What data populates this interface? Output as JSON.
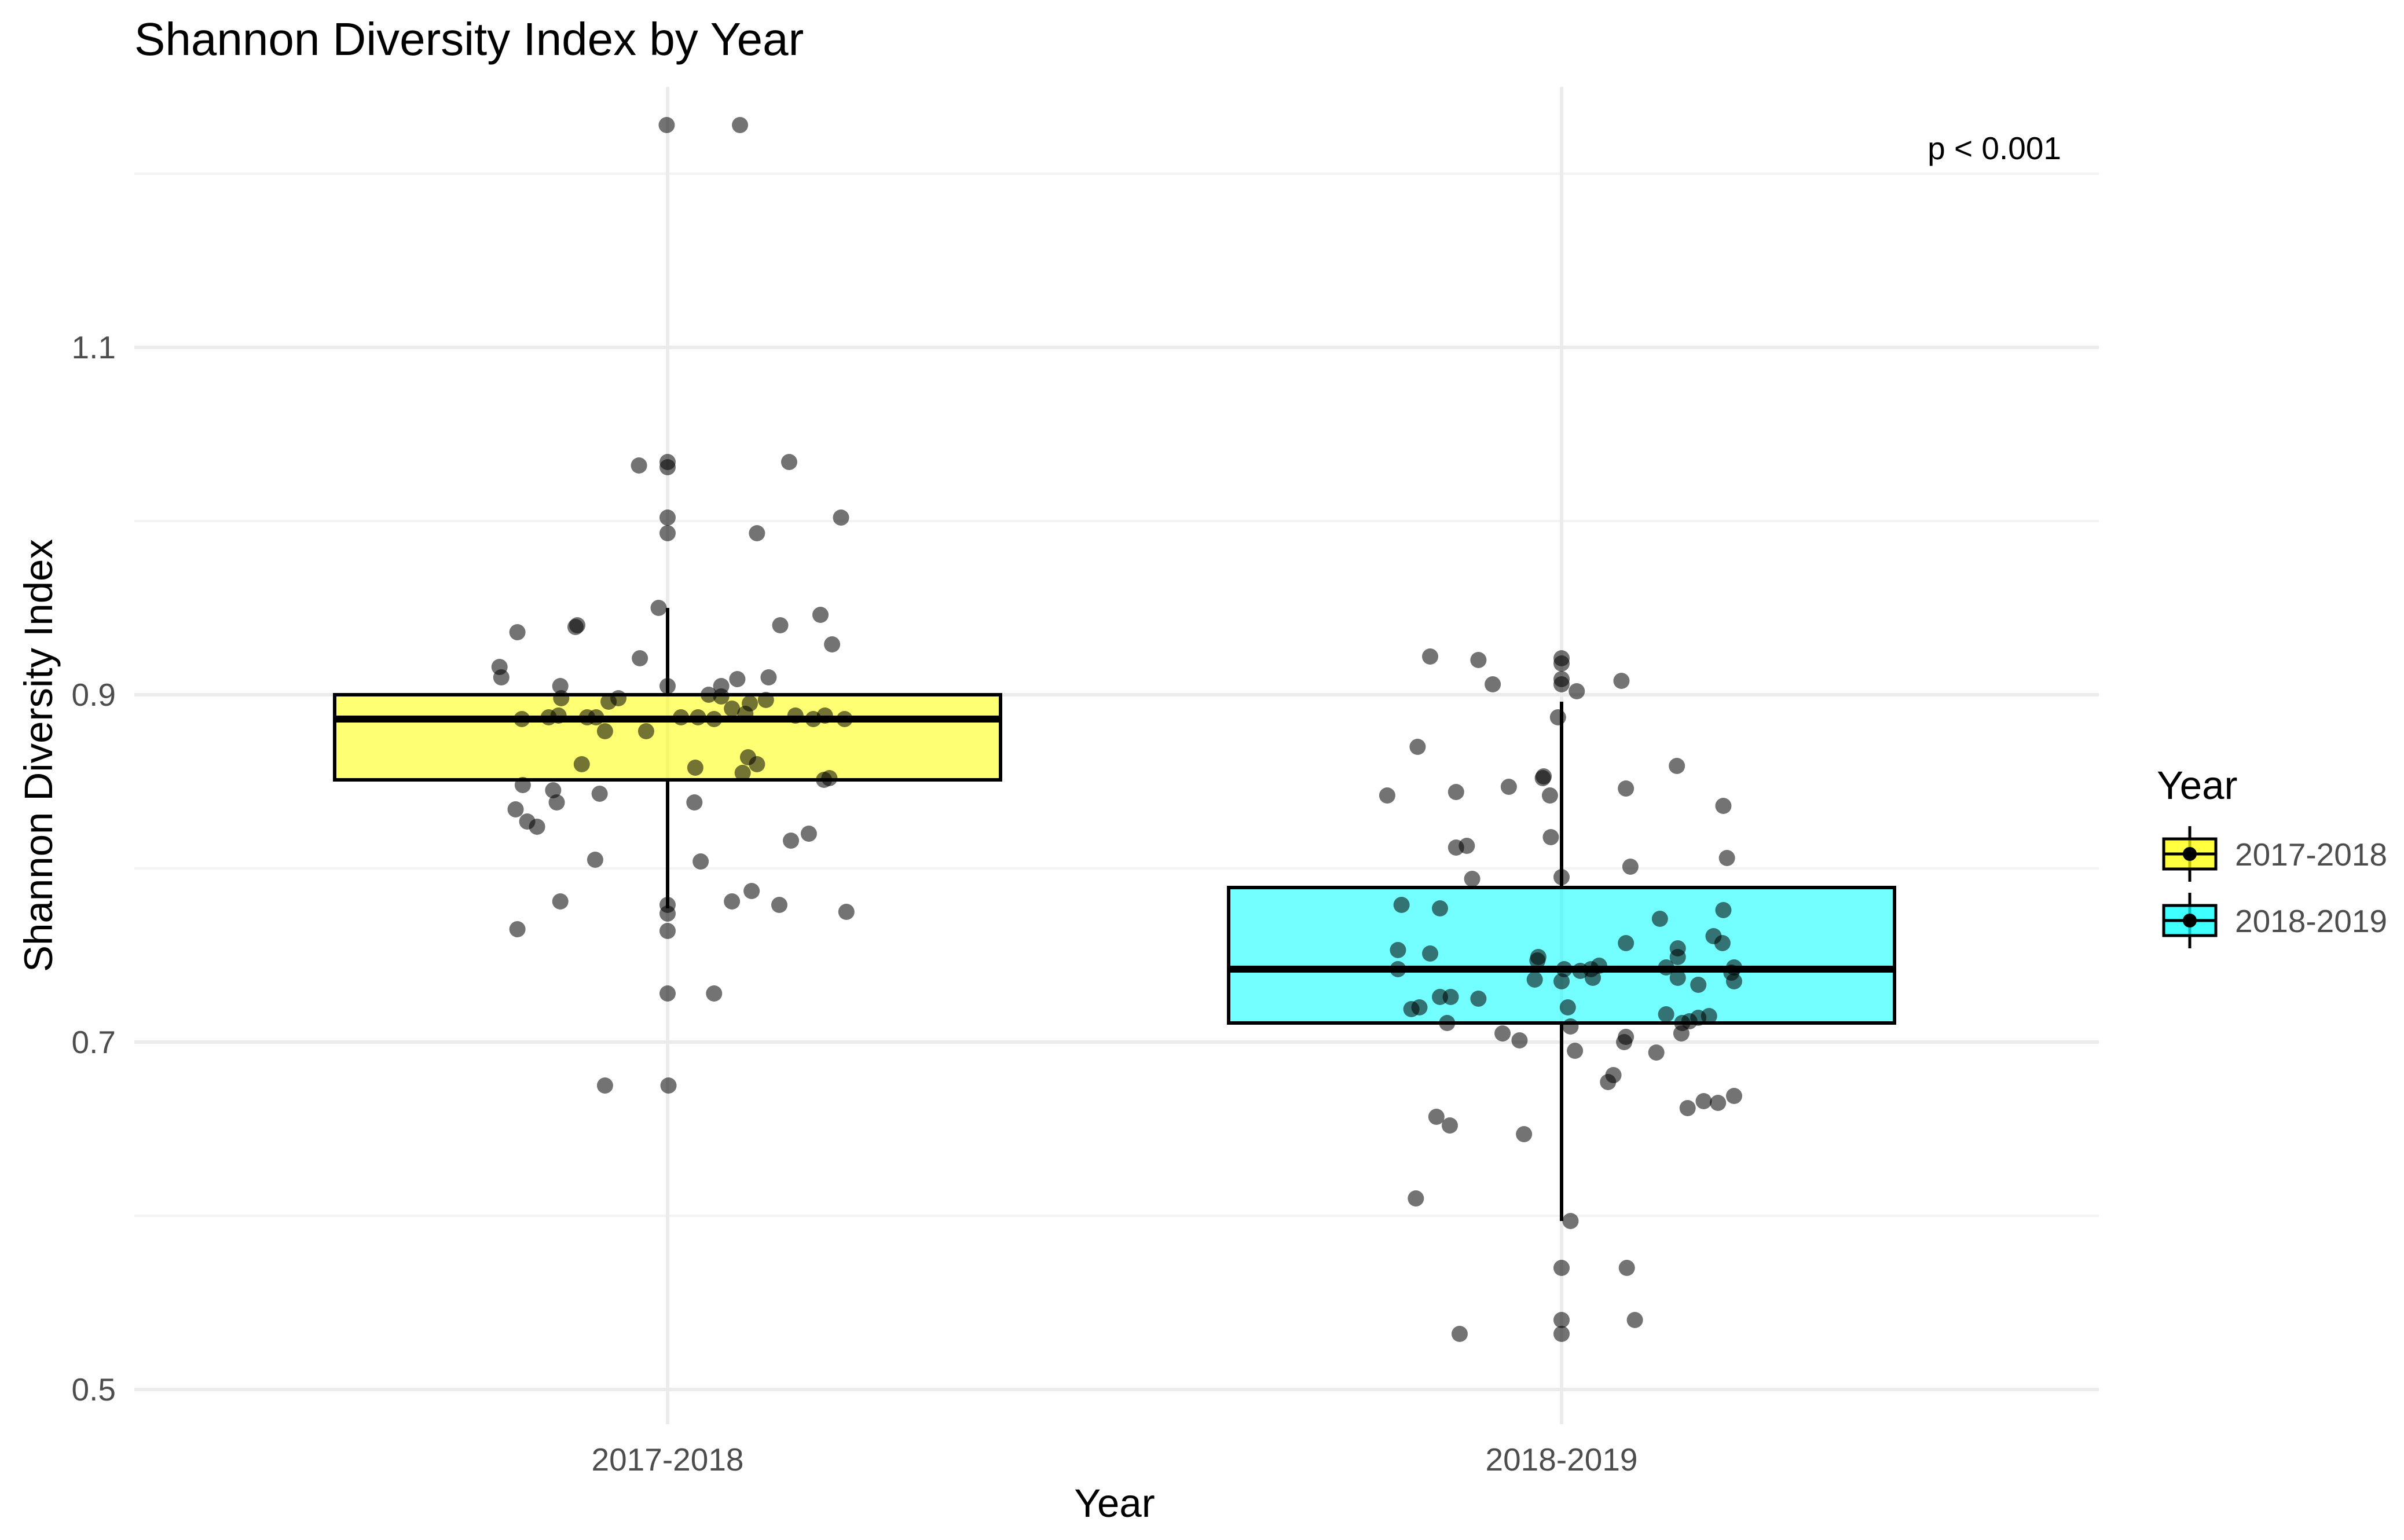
{
  "chart_data": {
    "type": "box",
    "title": "Shannon Diversity Index by Year",
    "xlabel": "Year",
    "ylabel": "Shannon Diversity Index",
    "categories": [
      "2017-2018",
      "2018-2019"
    ],
    "ylim": [
      0.48,
      1.25
    ],
    "yticks": [
      0.5,
      0.7,
      0.9,
      1.1
    ],
    "ytick_labels": [
      "0.5",
      "0.7",
      "0.9",
      "1.1"
    ],
    "grid": true,
    "annotation": "p < 0.001",
    "legend": {
      "title": "Year",
      "position": "right",
      "entries": [
        {
          "label": "2017-2018",
          "color": "#ffff00"
        },
        {
          "label": "2018-2019",
          "color": "#00ffff"
        }
      ]
    },
    "series": [
      {
        "name": "2017-2018",
        "color": "#ffff00",
        "box": {
          "q1": 0.851,
          "median": 0.886,
          "q3": 0.9,
          "whisker_low": 0.777,
          "whisker_high": 0.95
        },
        "points": [
          [
            -0.001,
            1.228
          ],
          [
            0.081,
            1.228
          ],
          [
            -0.032,
            1.032
          ],
          [
            0.0,
            1.034
          ],
          [
            0.0,
            1.031
          ],
          [
            0.136,
            1.034
          ],
          [
            0.0,
            1.002
          ],
          [
            0.0,
            0.993
          ],
          [
            0.1,
            0.993
          ],
          [
            0.194,
            1.002
          ],
          [
            -0.01,
            0.95
          ],
          [
            -0.101,
            0.94
          ],
          [
            -0.103,
            0.939
          ],
          [
            -0.168,
            0.936
          ],
          [
            0.126,
            0.94
          ],
          [
            0.184,
            0.929
          ],
          [
            0.171,
            0.946
          ],
          [
            -0.188,
            0.916
          ],
          [
            -0.186,
            0.91
          ],
          [
            -0.031,
            0.921
          ],
          [
            0.0,
            0.905
          ],
          [
            0.06,
            0.905
          ],
          [
            0.113,
            0.91
          ],
          [
            0.078,
            0.909
          ],
          [
            -0.12,
            0.905
          ],
          [
            -0.119,
            0.898
          ],
          [
            -0.066,
            0.896
          ],
          [
            -0.055,
            0.898
          ],
          [
            0.046,
            0.9
          ],
          [
            0.06,
            0.899
          ],
          [
            0.11,
            0.897
          ],
          [
            0.092,
            0.895
          ],
          [
            -0.163,
            0.886
          ],
          [
            -0.133,
            0.887
          ],
          [
            -0.122,
            0.888
          ],
          [
            -0.09,
            0.887
          ],
          [
            -0.08,
            0.887
          ],
          [
            -0.07,
            0.879
          ],
          [
            -0.024,
            0.879
          ],
          [
            0.015,
            0.887
          ],
          [
            0.034,
            0.887
          ],
          [
            0.052,
            0.886
          ],
          [
            0.072,
            0.892
          ],
          [
            0.087,
            0.889
          ],
          [
            0.143,
            0.888
          ],
          [
            0.163,
            0.886
          ],
          [
            0.176,
            0.888
          ],
          [
            0.198,
            0.886
          ],
          [
            -0.096,
            0.86
          ],
          [
            0.031,
            0.858
          ],
          [
            0.09,
            0.864
          ],
          [
            0.1,
            0.86
          ],
          [
            0.084,
            0.855
          ],
          [
            0.175,
            0.851
          ],
          [
            0.181,
            0.852
          ],
          [
            -0.162,
            0.848
          ],
          [
            -0.128,
            0.845
          ],
          [
            -0.124,
            0.838
          ],
          [
            -0.17,
            0.834
          ],
          [
            -0.157,
            0.827
          ],
          [
            -0.146,
            0.824
          ],
          [
            -0.076,
            0.843
          ],
          [
            0.03,
            0.838
          ],
          [
            -0.081,
            0.805
          ],
          [
            0.037,
            0.804
          ],
          [
            0.138,
            0.816
          ],
          [
            0.158,
            0.82
          ],
          [
            -0.12,
            0.781
          ],
          [
            0.0,
            0.779
          ],
          [
            0.0,
            0.774
          ],
          [
            0.072,
            0.781
          ],
          [
            0.094,
            0.787
          ],
          [
            0.125,
            0.779
          ],
          [
            0.2,
            0.775
          ],
          [
            -0.168,
            0.765
          ],
          [
            0.0,
            0.764
          ],
          [
            0.0,
            0.728
          ],
          [
            0.052,
            0.728
          ],
          [
            -0.07,
            0.675
          ],
          [
            0.001,
            0.675
          ]
        ]
      },
      {
        "name": "2018-2019",
        "color": "#00ffff",
        "box": {
          "q1": 0.711,
          "median": 0.742,
          "q3": 0.789,
          "whisker_low": 0.597,
          "whisker_high": 0.896
        },
        "points": [
          [
            -0.147,
            0.922
          ],
          [
            -0.093,
            0.92
          ],
          [
            -0.077,
            0.906
          ],
          [
            0.0,
            0.921
          ],
          [
            0.0,
            0.918
          ],
          [
            0.0,
            0.909
          ],
          [
            0.0,
            0.906
          ],
          [
            0.017,
            0.902
          ],
          [
            0.067,
            0.908
          ],
          [
            -0.004,
            0.887
          ],
          [
            -0.161,
            0.87
          ],
          [
            -0.195,
            0.842
          ],
          [
            -0.118,
            0.844
          ],
          [
            -0.059,
            0.847
          ],
          [
            -0.02,
            0.853
          ],
          [
            -0.021,
            0.852
          ],
          [
            -0.013,
            0.842
          ],
          [
            0.072,
            0.846
          ],
          [
            0.129,
            0.859
          ],
          [
            0.181,
            0.836
          ],
          [
            -0.118,
            0.812
          ],
          [
            -0.106,
            0.813
          ],
          [
            -0.012,
            0.818
          ],
          [
            0.077,
            0.801
          ],
          [
            0.185,
            0.806
          ],
          [
            -0.1,
            0.794
          ],
          [
            0.0,
            0.795
          ],
          [
            -0.179,
            0.779
          ],
          [
            -0.136,
            0.777
          ],
          [
            0.11,
            0.771
          ],
          [
            0.181,
            0.776
          ],
          [
            0.18,
            0.757
          ],
          [
            0.17,
            0.761
          ],
          [
            -0.183,
            0.753
          ],
          [
            -0.147,
            0.751
          ],
          [
            -0.183,
            0.742
          ],
          [
            -0.03,
            0.736
          ],
          [
            -0.027,
            0.747
          ],
          [
            -0.026,
            0.749
          ],
          [
            0.0,
            0.735
          ],
          [
            0.003,
            0.742
          ],
          [
            0.021,
            0.741
          ],
          [
            0.033,
            0.742
          ],
          [
            0.042,
            0.744
          ],
          [
            0.072,
            0.757
          ],
          [
            0.13,
            0.754
          ],
          [
            0.13,
            0.749
          ],
          [
            0.117,
            0.743
          ],
          [
            0.13,
            0.737
          ],
          [
            0.153,
            0.733
          ],
          [
            0.19,
            0.74
          ],
          [
            0.193,
            0.743
          ],
          [
            0.193,
            0.735
          ],
          [
            -0.168,
            0.719
          ],
          [
            -0.159,
            0.72
          ],
          [
            -0.136,
            0.726
          ],
          [
            -0.124,
            0.726
          ],
          [
            -0.093,
            0.725
          ],
          [
            0.007,
            0.72
          ],
          [
            0.035,
            0.737
          ],
          [
            0.117,
            0.716
          ],
          [
            0.135,
            0.711
          ],
          [
            0.143,
            0.712
          ],
          [
            0.153,
            0.714
          ],
          [
            0.165,
            0.715
          ],
          [
            -0.128,
            0.711
          ],
          [
            -0.066,
            0.705
          ],
          [
            -0.047,
            0.701
          ],
          [
            0.01,
            0.709
          ],
          [
            0.015,
            0.695
          ],
          [
            0.07,
            0.7
          ],
          [
            0.072,
            0.703
          ],
          [
            0.106,
            0.694
          ],
          [
            0.134,
            0.705
          ],
          [
            0.058,
            0.681
          ],
          [
            0.052,
            0.677
          ],
          [
            0.141,
            0.662
          ],
          [
            0.159,
            0.666
          ],
          [
            0.175,
            0.665
          ],
          [
            0.193,
            0.669
          ],
          [
            -0.14,
            0.657
          ],
          [
            -0.125,
            0.652
          ],
          [
            -0.042,
            0.647
          ],
          [
            -0.163,
            0.61
          ],
          [
            0.01,
            0.597
          ],
          [
            0.0,
            0.57
          ],
          [
            0.073,
            0.57
          ],
          [
            0.0,
            0.54
          ],
          [
            0.082,
            0.54
          ],
          [
            -0.114,
            0.532
          ],
          [
            0.0,
            0.532
          ]
        ]
      }
    ]
  }
}
